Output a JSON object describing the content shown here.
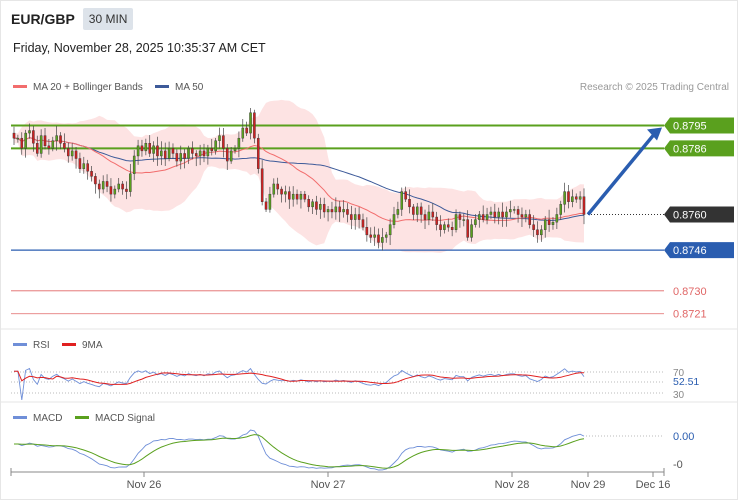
{
  "header": {
    "symbol": "EUR/GBP",
    "timeframe": "30 MIN"
  },
  "timestamp": "Friday, November 28, 2025 10:35:37 AM CET",
  "credit": "Research © 2025 Trading Central",
  "colors": {
    "ma20": "#f26d6d",
    "ma50": "#3d5a99",
    "bollinger_fill": "#fde3e3",
    "resistance": "#5aa01e",
    "support": "#2a5db0",
    "lower_levels": "#e06666",
    "current": "#333333",
    "rsi": "#6f8fd8",
    "rsi_ma": "#e02020",
    "macd": "#6f8fd8",
    "macd_signal": "#5aa01e",
    "candle_up": "#5aa01e",
    "candle_down": "#cc2222",
    "arrow": "#2a5db0"
  },
  "chart_data": [
    {
      "type": "candlestick",
      "legend": [
        {
          "label": "MA 20 + Bollinger Bands",
          "color": "#f26d6d"
        },
        {
          "label": "MA 50",
          "color": "#3d5a99"
        }
      ],
      "x_ticks": [
        "Nov 26",
        "Nov 27",
        "Nov 28",
        "Nov 29",
        "Dec 16"
      ],
      "ylim": [
        0.8715,
        0.8805
      ],
      "levels": [
        {
          "value": 0.8795,
          "label": "0.8795",
          "kind": "resistance"
        },
        {
          "value": 0.8786,
          "label": "0.8786",
          "kind": "resistance"
        },
        {
          "value": 0.876,
          "label": "0.8760",
          "kind": "current"
        },
        {
          "value": 0.8746,
          "label": "0.8746",
          "kind": "support"
        },
        {
          "value": 0.873,
          "label": "0.8730",
          "kind": "lower"
        },
        {
          "value": 0.8721,
          "label": "0.8721",
          "kind": "lower"
        }
      ],
      "close": [
        0.879,
        0.879,
        0.8786,
        0.8792,
        0.8793,
        0.8788,
        0.8784,
        0.8791,
        0.8787,
        0.8786,
        0.8789,
        0.8791,
        0.8788,
        0.8786,
        0.8783,
        0.8785,
        0.8782,
        0.8778,
        0.878,
        0.8777,
        0.8775,
        0.8772,
        0.877,
        0.8773,
        0.8771,
        0.8768,
        0.877,
        0.8772,
        0.877,
        0.8769,
        0.8776,
        0.8783,
        0.8787,
        0.8785,
        0.8788,
        0.8784,
        0.8787,
        0.8783,
        0.8785,
        0.8782,
        0.8786,
        0.8784,
        0.8781,
        0.8784,
        0.8782,
        0.8786,
        0.8784,
        0.8783,
        0.8785,
        0.8783,
        0.8786,
        0.8785,
        0.8789,
        0.8791,
        0.8786,
        0.8781,
        0.8785,
        0.8786,
        0.879,
        0.8794,
        0.8792,
        0.88,
        0.879,
        0.8778,
        0.8765,
        0.8762,
        0.8768,
        0.8772,
        0.877,
        0.8768,
        0.8769,
        0.8766,
        0.8768,
        0.8766,
        0.8768,
        0.8766,
        0.8763,
        0.8765,
        0.8762,
        0.8764,
        0.8761,
        0.8762,
        0.8761,
        0.8763,
        0.8761,
        0.8762,
        0.876,
        0.8758,
        0.876,
        0.8758,
        0.8755,
        0.8752,
        0.8751,
        0.8752,
        0.8749,
        0.8751,
        0.8752,
        0.8756,
        0.876,
        0.8762,
        0.8769,
        0.8766,
        0.8763,
        0.876,
        0.8763,
        0.876,
        0.8758,
        0.8761,
        0.8759,
        0.8756,
        0.8754,
        0.8756,
        0.8755,
        0.8754,
        0.876,
        0.8758,
        0.8758,
        0.8751,
        0.8756,
        0.8758,
        0.876,
        0.8758,
        0.876,
        0.8761,
        0.8759,
        0.8761,
        0.8759,
        0.8761,
        0.8762,
        0.8762,
        0.876,
        0.8759,
        0.876,
        0.8756,
        0.8754,
        0.8752,
        0.8754,
        0.8758,
        0.8756,
        0.8757,
        0.876,
        0.8764,
        0.8769,
        0.8765,
        0.8767,
        0.8766,
        0.8767,
        0.876
      ],
      "rsi": {
        "label": "RSI",
        "ma_label": "9MA",
        "levels": [
          70,
          30
        ],
        "level_labels": [
          "70",
          "30"
        ],
        "last": 52.51,
        "last_label": "52.51"
      },
      "macd": {
        "label": "MACD",
        "signal_label": "MACD Signal",
        "levels": [
          "0.00",
          "-0"
        ]
      }
    }
  ]
}
